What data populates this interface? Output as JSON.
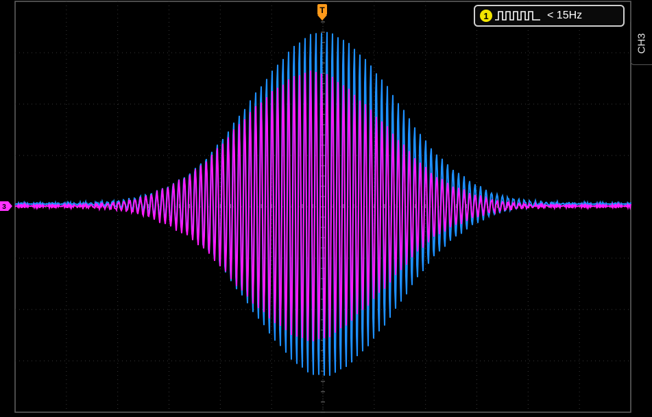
{
  "trigger": {
    "marker": "T",
    "color": "#ff9a1a"
  },
  "frequency_readout": {
    "channel_number": "1",
    "text": "< 15Hz",
    "badge_color": "#f2e500"
  },
  "side_panel": {
    "label": "CH3"
  },
  "channel_marker": {
    "label": "3",
    "color": "#ff33ff"
  },
  "traces": {
    "channel_blue": {
      "color": "#1e90ff"
    },
    "channel_magenta": {
      "color": "#ff1aff"
    }
  }
}
